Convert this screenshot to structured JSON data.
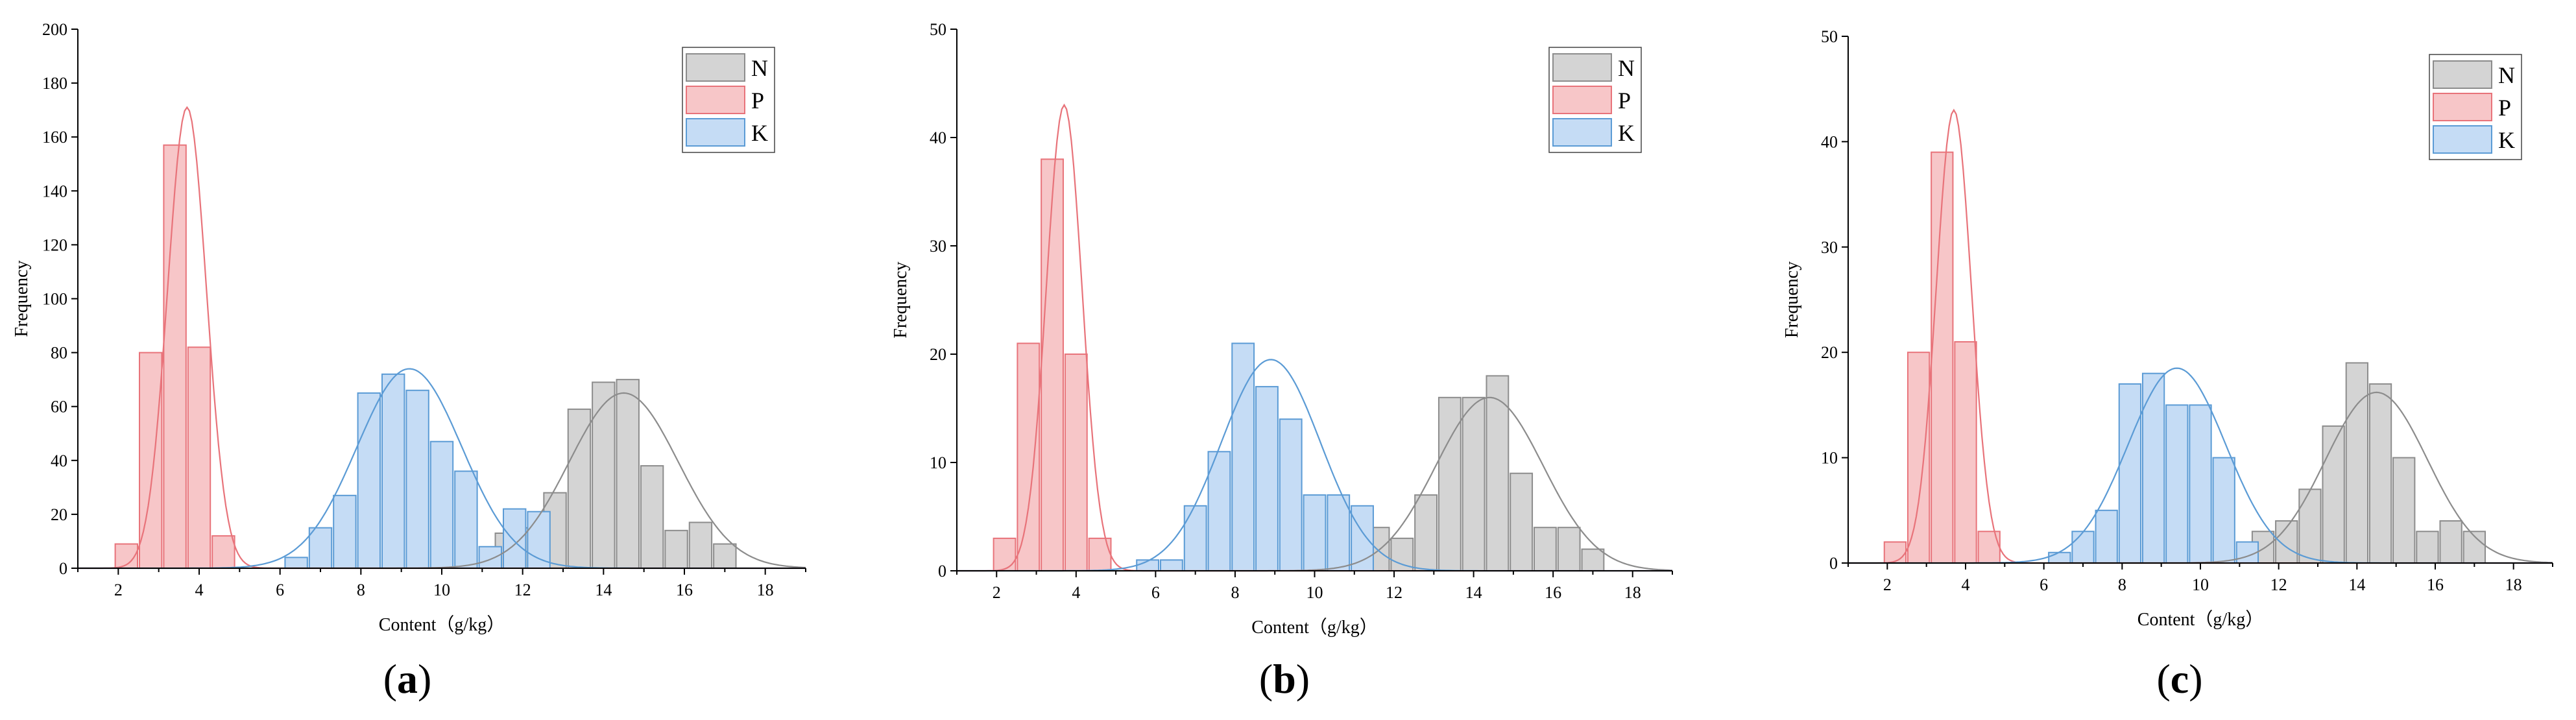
{
  "chart_data": [
    {
      "type": "bar",
      "caption": "a",
      "xlabel": "Content（g/kg）",
      "ylabel": "Frequency",
      "xlim": [
        1,
        19
      ],
      "ylim": [
        0,
        200
      ],
      "yticks": [
        0,
        20,
        40,
        60,
        80,
        100,
        120,
        140,
        160,
        180,
        200
      ],
      "xticks": [
        2,
        4,
        6,
        8,
        10,
        12,
        14,
        16,
        18
      ],
      "bin_width": 0.6,
      "legend": "top-right",
      "series": [
        {
          "name": "N",
          "color": "#8c8c8c",
          "fill": "#d4d4d4",
          "x": [
            11.6,
            12.2,
            12.8,
            13.4,
            14.0,
            14.6,
            15.2,
            15.8,
            16.4,
            17.0,
            17.6
          ],
          "values": [
            13,
            15,
            28,
            59,
            69,
            70,
            38,
            14,
            17,
            9,
            0
          ],
          "fit": {
            "mean": 14.5,
            "sd": 1.35,
            "peak": 65
          }
        },
        {
          "name": "P",
          "color": "#e8737a",
          "fill": "#f7c6c8",
          "x": [
            2.2,
            2.8,
            3.4,
            4.0,
            4.6
          ],
          "values": [
            9,
            80,
            157,
            82,
            12
          ],
          "fit": {
            "mean": 3.7,
            "sd": 0.48,
            "peak": 171
          }
        },
        {
          "name": "K",
          "color": "#5b9bd5",
          "fill": "#c5dcf5",
          "x": [
            6.4,
            7.0,
            7.6,
            8.2,
            8.8,
            9.4,
            10.0,
            10.6,
            11.2,
            11.8,
            12.4
          ],
          "values": [
            4,
            15,
            27,
            65,
            72,
            66,
            47,
            36,
            8,
            22,
            21
          ],
          "fit": {
            "mean": 9.2,
            "sd": 1.3,
            "peak": 74
          }
        }
      ]
    },
    {
      "type": "bar",
      "caption": "b",
      "xlabel": "Content（g/kg）",
      "ylabel": "Frequency",
      "xlim": [
        1,
        19
      ],
      "ylim": [
        0,
        50
      ],
      "yticks": [
        0,
        10,
        20,
        30,
        40,
        50
      ],
      "xticks": [
        2,
        4,
        6,
        8,
        10,
        12,
        14,
        16,
        18
      ],
      "bin_width": 0.6,
      "legend": "top-right",
      "series": [
        {
          "name": "N",
          "color": "#8c8c8c",
          "fill": "#d4d4d4",
          "x": [
            11.6,
            12.2,
            12.8,
            13.4,
            14.0,
            14.6,
            15.2,
            15.8,
            16.4,
            17.0,
            17.6
          ],
          "values": [
            4,
            3,
            7,
            16,
            16,
            18,
            9,
            4,
            4,
            2,
            0
          ],
          "fit": {
            "mean": 14.4,
            "sd": 1.35,
            "peak": 16
          }
        },
        {
          "name": "P",
          "color": "#e8737a",
          "fill": "#f7c6c8",
          "x": [
            2.2,
            2.8,
            3.4,
            4.0,
            4.6
          ],
          "values": [
            3,
            21,
            38,
            20,
            3
          ],
          "fit": {
            "mean": 3.7,
            "sd": 0.45,
            "peak": 43
          }
        },
        {
          "name": "K",
          "color": "#5b9bd5",
          "fill": "#c5dcf5",
          "x": [
            5.8,
            6.4,
            7.0,
            7.6,
            8.2,
            8.8,
            9.4,
            10.0,
            10.6,
            11.2
          ],
          "values": [
            1,
            1,
            6,
            11,
            21,
            17,
            14,
            7,
            7,
            6
          ],
          "fit": {
            "mean": 8.9,
            "sd": 1.25,
            "peak": 19.5
          }
        }
      ]
    },
    {
      "type": "bar",
      "caption": "c",
      "xlabel": "Content（g/kg）",
      "ylabel": "Frequency",
      "xlim": [
        1,
        19
      ],
      "ylim": [
        0,
        50
      ],
      "yticks": [
        0,
        10,
        20,
        30,
        40,
        50
      ],
      "xticks": [
        2,
        4,
        6,
        8,
        10,
        12,
        14,
        16,
        18
      ],
      "bin_width": 0.6,
      "legend": "top-right",
      "series": [
        {
          "name": "N",
          "color": "#8c8c8c",
          "fill": "#d4d4d4",
          "x": [
            11.6,
            12.2,
            12.8,
            13.4,
            14.0,
            14.6,
            15.2,
            15.8,
            16.4,
            17.0,
            17.6
          ],
          "values": [
            3,
            4,
            7,
            13,
            19,
            17,
            10,
            3,
            4,
            3,
            0
          ],
          "fit": {
            "mean": 14.5,
            "sd": 1.3,
            "peak": 16.2
          }
        },
        {
          "name": "P",
          "color": "#e8737a",
          "fill": "#f7c6c8",
          "x": [
            2.2,
            2.8,
            3.4,
            4.0,
            4.6
          ],
          "values": [
            2,
            20,
            39,
            21,
            3
          ],
          "fit": {
            "mean": 3.7,
            "sd": 0.45,
            "peak": 43
          }
        },
        {
          "name": "K",
          "color": "#5b9bd5",
          "fill": "#c5dcf5",
          "x": [
            6.4,
            7.0,
            7.6,
            8.2,
            8.8,
            9.4,
            10.0,
            10.6,
            11.2
          ],
          "values": [
            1,
            3,
            5,
            17,
            18,
            15,
            15,
            10,
            2
          ],
          "fit": {
            "mean": 9.4,
            "sd": 1.25,
            "peak": 18.5
          }
        }
      ]
    }
  ]
}
